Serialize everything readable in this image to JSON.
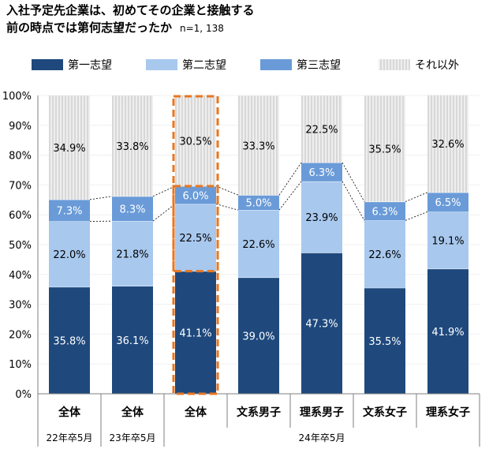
{
  "title": {
    "line1": "入社予定先企業は、初めてその企業と接触する",
    "line2": "前の時点では第何志望だったか",
    "n": "n=1, 138"
  },
  "colors": {
    "first": "#1f497d",
    "second": "#a8c8ee",
    "third": "#6a9bd8",
    "other": "#e0e0e0",
    "highlight": "#e87722"
  },
  "chart_data": {
    "type": "bar",
    "stacked": true,
    "categories": [
      "全体",
      "全体",
      "全体",
      "文系男子",
      "理系男子",
      "文系女子",
      "理系女子"
    ],
    "groups": [
      {
        "label": "22年卒5月",
        "span": [
          0,
          0
        ]
      },
      {
        "label": "23年卒5月",
        "span": [
          1,
          1
        ]
      },
      {
        "label": "24年卒5月",
        "span": [
          2,
          6
        ]
      }
    ],
    "series": [
      {
        "name": "第一志望",
        "values": [
          35.8,
          36.1,
          41.1,
          39.0,
          47.3,
          35.5,
          41.9
        ],
        "labels": [
          "35.8%",
          "36.1%",
          "41.1%",
          "39.0%",
          "47.3%",
          "35.5%",
          "41.9%"
        ]
      },
      {
        "name": "第二志望",
        "values": [
          22.0,
          21.8,
          22.5,
          22.6,
          23.9,
          22.6,
          19.1
        ],
        "labels": [
          "22.0%",
          "21.8%",
          "22.5%",
          "22.6%",
          "23.9%",
          "22.6%",
          "19.1%"
        ]
      },
      {
        "name": "第三志望",
        "values": [
          7.3,
          8.3,
          6.0,
          5.0,
          6.3,
          6.3,
          6.5
        ],
        "labels": [
          "7.3%",
          "8.3%",
          "6.0%",
          "5.0%",
          "6.3%",
          "6.3%",
          "6.5%"
        ]
      },
      {
        "name": "それ以外",
        "values": [
          34.9,
          33.8,
          30.5,
          33.3,
          22.5,
          35.5,
          32.6
        ],
        "labels": [
          "34.9%",
          "33.8%",
          "30.5%",
          "33.3%",
          "22.5%",
          "35.5%",
          "32.6%"
        ]
      }
    ],
    "ylim": [
      0,
      100
    ],
    "yticks": [
      "0%",
      "10%",
      "20%",
      "30%",
      "40%",
      "50%",
      "60%",
      "70%",
      "80%",
      "90%",
      "100%"
    ],
    "highlight_index": 2,
    "legend_position": "top"
  }
}
